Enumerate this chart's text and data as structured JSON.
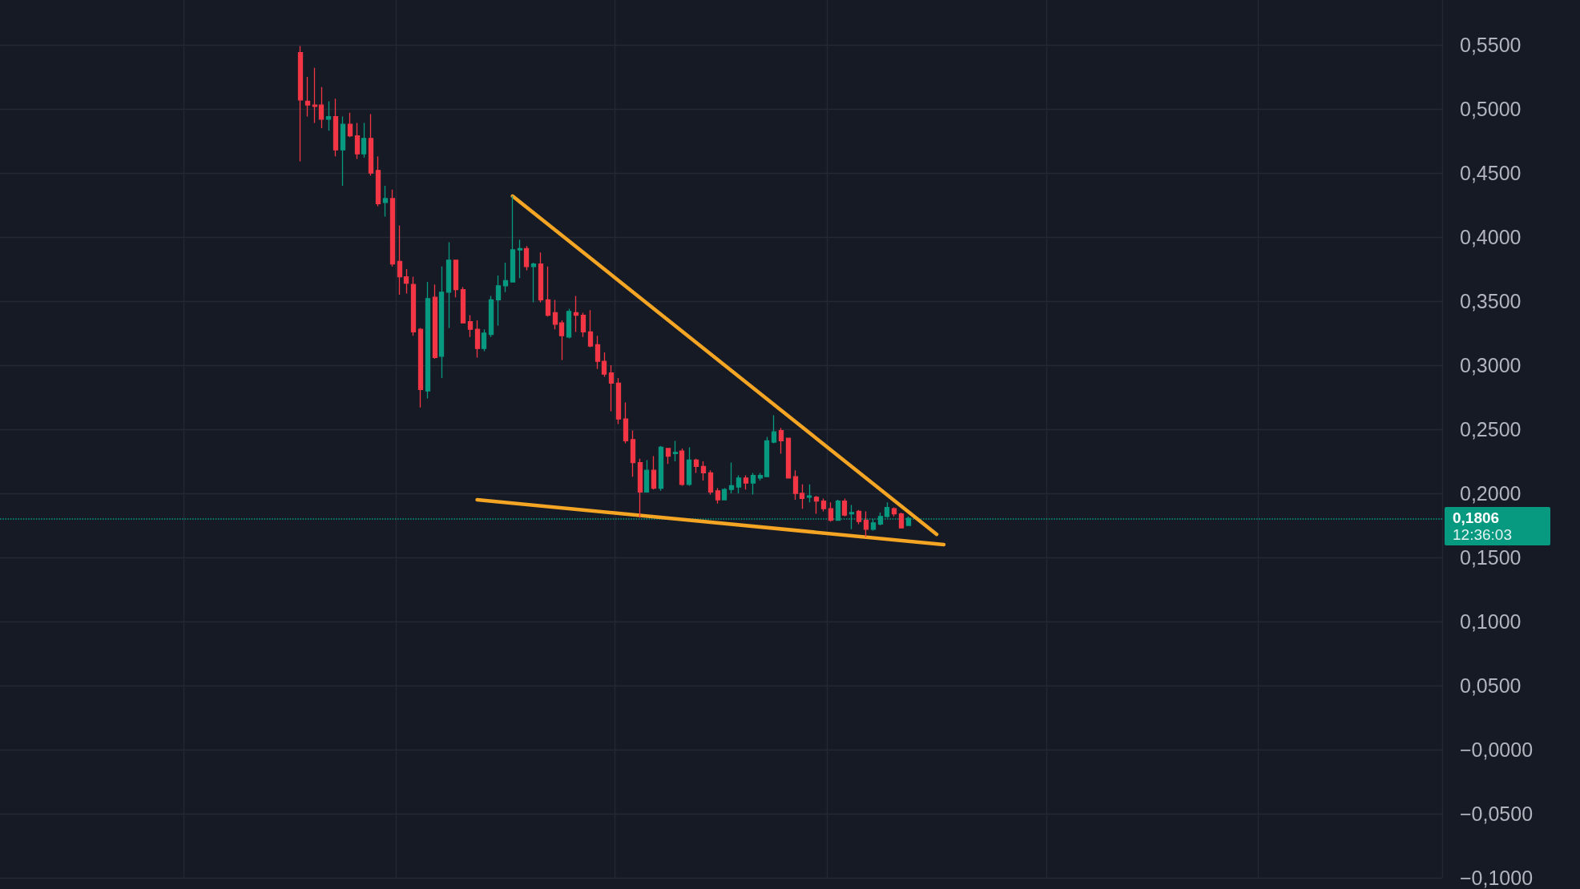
{
  "chart_data": {
    "type": "candlestick",
    "categories": [
      null,
      null,
      null,
      null,
      null,
      null,
      null,
      null,
      null,
      null,
      null,
      null,
      null,
      null,
      null,
      null,
      null,
      null,
      null,
      null,
      null,
      null,
      null,
      null,
      null,
      null,
      null,
      null,
      null,
      null,
      null,
      null,
      null,
      null,
      null,
      null,
      null,
      null,
      null,
      null,
      null,
      null,
      null,
      null,
      null,
      null,
      null,
      null,
      null,
      null,
      null,
      null,
      null,
      null,
      null,
      null,
      null,
      null,
      null,
      null,
      null,
      null,
      null,
      null,
      null,
      null,
      null,
      null,
      null,
      null,
      null,
      null,
      null,
      null,
      null,
      null,
      null,
      null,
      null,
      null,
      null,
      null,
      null,
      null,
      null,
      null,
      null,
      null,
      null,
      null,
      null,
      null,
      null,
      null,
      null,
      null,
      null,
      null,
      null,
      null,
      null,
      null,
      null,
      null,
      null,
      null,
      null,
      null,
      null,
      null,
      null,
      null,
      null,
      null,
      null,
      null,
      null,
      null,
      null,
      null,
      null,
      null,
      null,
      null,
      null,
      null,
      null,
      null,
      null,
      null,
      null,
      null,
      null,
      null,
      null,
      null,
      null,
      null,
      null,
      null,
      null,
      null,
      null,
      null,
      null,
      null,
      null,
      null,
      null,
      null,
      null,
      null,
      null,
      null,
      null,
      null,
      null,
      null,
      null,
      null,
      null,
      null,
      null,
      null,
      null,
      null,
      null,
      null,
      null,
      null,
      null,
      null,
      null,
      null,
      null,
      null,
      null,
      null,
      null,
      null,
      null,
      null,
      null,
      null,
      null,
      null,
      null,
      null,
      null,
      null,
      null,
      null,
      null,
      null,
      null,
      null,
      null,
      null,
      null,
      null,
      null,
      null,
      null,
      null
    ],
    "ohlc": [
      null,
      null,
      null,
      null,
      null,
      null,
      null,
      null,
      null,
      null,
      null,
      null,
      null,
      null,
      null,
      null,
      null,
      null,
      null,
      null,
      null,
      null,
      null,
      null,
      null,
      null,
      null,
      null,
      null,
      null,
      null,
      null,
      null,
      null,
      null,
      null,
      null,
      null,
      null,
      null,
      null,
      null,
      [
        0.544,
        0.549,
        0.459,
        0.507
      ],
      [
        0.506,
        0.525,
        0.494,
        0.503
      ],
      [
        0.503,
        0.532,
        0.489,
        0.502
      ],
      [
        0.503,
        0.517,
        0.485,
        0.492
      ],
      [
        0.492,
        0.506,
        0.483,
        0.494
      ],
      [
        0.494,
        0.508,
        0.463,
        0.468
      ],
      [
        0.468,
        0.494,
        0.44,
        0.488
      ],
      [
        0.488,
        0.497,
        0.478,
        0.479
      ],
      [
        0.479,
        0.489,
        0.461,
        0.465
      ],
      [
        0.465,
        0.489,
        0.462,
        0.477
      ],
      [
        0.477,
        0.496,
        0.448,
        0.45
      ],
      [
        0.452,
        0.463,
        0.424,
        0.426
      ],
      [
        0.427,
        0.44,
        0.416,
        0.43
      ],
      [
        0.43,
        0.437,
        0.377,
        0.379
      ],
      [
        0.381,
        0.409,
        0.355,
        0.369
      ],
      [
        0.369,
        0.375,
        0.356,
        0.364
      ],
      [
        0.363,
        0.369,
        0.323,
        0.326
      ],
      [
        0.328,
        0.329,
        0.267,
        0.281
      ],
      [
        0.28,
        0.365,
        0.274,
        0.352
      ],
      [
        0.353,
        0.363,
        0.305,
        0.306
      ],
      [
        0.307,
        0.377,
        0.29,
        0.357
      ],
      [
        0.357,
        0.396,
        0.329,
        0.382
      ],
      [
        0.382,
        0.382,
        0.353,
        0.359
      ],
      [
        0.359,
        0.361,
        0.333,
        0.333
      ],
      [
        0.334,
        0.339,
        0.322,
        0.328
      ],
      [
        0.328,
        0.335,
        0.306,
        0.313
      ],
      [
        0.313,
        0.328,
        0.311,
        0.325
      ],
      [
        0.324,
        0.354,
        0.322,
        0.351
      ],
      [
        0.351,
        0.37,
        0.331,
        0.362
      ],
      [
        0.362,
        0.38,
        0.357,
        0.366
      ],
      [
        0.365,
        0.432,
        0.365,
        0.39
      ],
      [
        0.39,
        0.398,
        0.368,
        0.391
      ],
      [
        0.391,
        0.393,
        0.374,
        0.377
      ],
      [
        0.377,
        0.38,
        0.349,
        0.379
      ],
      [
        0.379,
        0.388,
        0.349,
        0.351
      ],
      [
        0.351,
        0.377,
        0.338,
        0.339
      ],
      [
        0.341,
        0.351,
        0.328,
        0.332
      ],
      [
        0.333,
        0.335,
        0.304,
        0.323
      ],
      [
        0.322,
        0.344,
        0.321,
        0.342
      ],
      [
        0.341,
        0.354,
        0.326,
        0.339
      ],
      [
        0.339,
        0.341,
        0.322,
        0.326
      ],
      [
        0.326,
        0.343,
        0.314,
        0.315
      ],
      [
        0.316,
        0.323,
        0.297,
        0.303
      ],
      [
        0.303,
        0.31,
        0.291,
        0.293
      ],
      [
        0.294,
        0.3,
        0.264,
        0.286
      ],
      [
        0.286,
        0.29,
        0.254,
        0.258
      ],
      [
        0.258,
        0.271,
        0.239,
        0.241
      ],
      [
        0.242,
        0.249,
        0.213,
        0.224
      ],
      [
        0.224,
        0.227,
        0.181,
        0.201
      ],
      [
        0.201,
        0.226,
        0.201,
        0.218
      ],
      [
        0.218,
        0.229,
        0.203,
        0.204
      ],
      [
        0.204,
        0.237,
        0.202,
        0.236
      ],
      [
        0.235,
        0.235,
        0.223,
        0.229
      ],
      [
        0.231,
        0.241,
        0.225,
        0.232
      ],
      [
        0.233,
        0.235,
        0.206,
        0.207
      ],
      [
        0.207,
        0.236,
        0.206,
        0.226
      ],
      [
        0.226,
        0.227,
        0.216,
        0.221
      ],
      [
        0.221,
        0.225,
        0.21,
        0.216
      ],
      [
        0.216,
        0.218,
        0.199,
        0.201
      ],
      [
        0.202,
        0.204,
        0.192,
        0.195
      ],
      [
        0.195,
        0.204,
        0.195,
        0.203
      ],
      [
        0.203,
        0.224,
        0.2,
        0.206
      ],
      [
        0.205,
        0.214,
        0.2,
        0.212
      ],
      [
        0.212,
        0.214,
        0.203,
        0.208
      ],
      [
        0.208,
        0.216,
        0.199,
        0.214
      ],
      [
        0.212,
        0.216,
        0.21,
        0.214
      ],
      [
        0.213,
        0.244,
        0.213,
        0.241
      ],
      [
        0.24,
        0.261,
        0.239,
        0.248
      ],
      [
        0.249,
        0.251,
        0.231,
        0.241
      ],
      [
        0.243,
        0.243,
        0.212,
        0.212
      ],
      [
        0.213,
        0.218,
        0.195,
        0.2
      ],
      [
        0.2,
        0.207,
        0.188,
        0.196
      ],
      [
        0.197,
        0.207,
        0.193,
        0.198
      ],
      [
        0.197,
        0.198,
        0.184,
        0.194
      ],
      [
        0.194,
        0.196,
        0.186,
        0.188
      ],
      [
        0.188,
        0.193,
        0.178,
        0.179
      ],
      [
        0.179,
        0.195,
        0.179,
        0.194
      ],
      [
        0.194,
        0.196,
        0.182,
        0.183
      ],
      [
        0.184,
        0.191,
        0.172,
        0.185
      ],
      [
        0.186,
        0.187,
        0.176,
        0.178
      ],
      [
        0.179,
        0.186,
        0.166,
        0.172
      ],
      [
        0.172,
        0.18,
        0.171,
        0.177
      ],
      [
        0.176,
        0.185,
        0.175,
        0.182
      ],
      [
        0.182,
        0.193,
        0.181,
        0.189
      ],
      [
        0.188,
        0.189,
        0.182,
        0.184
      ],
      [
        0.184,
        0.185,
        0.173,
        0.173
      ],
      [
        0.175,
        0.182,
        0.175,
        0.1806
      ],
      null,
      null,
      null,
      null,
      null,
      null,
      null,
      null,
      null,
      null,
      null,
      null,
      null,
      null,
      null,
      null,
      null,
      null,
      null,
      null,
      null,
      null,
      null,
      null,
      null,
      null,
      null,
      null,
      null,
      null,
      null,
      null,
      null,
      null,
      null,
      null,
      null,
      null,
      null,
      null,
      null,
      null,
      null,
      null,
      null,
      null,
      null,
      null,
      null,
      null,
      null,
      null,
      null,
      null,
      null,
      null,
      null,
      null,
      null,
      null,
      null,
      null,
      null,
      null,
      null,
      null,
      null,
      null,
      null,
      null,
      null,
      null,
      null,
      null,
      null
    ],
    "colors": [
      null,
      null,
      null,
      null,
      null,
      null,
      null,
      null,
      null,
      null,
      null,
      null,
      null,
      null,
      null,
      null,
      null,
      null,
      null,
      null,
      null,
      null,
      null,
      null,
      null,
      null,
      null,
      null,
      null,
      null,
      null,
      null,
      null,
      null,
      null,
      null,
      null,
      null,
      null,
      null,
      null,
      null,
      "#f23645",
      "#f23645",
      "#f23645",
      "#f23645",
      "#089981",
      "#f23645",
      "#089981",
      "#f23645",
      "#f23645",
      "#089981",
      "#f23645",
      "#f23645",
      "#089981",
      "#f23645",
      "#f23645",
      "#f23645",
      "#f23645",
      "#f23645",
      "#089981",
      "#f23645",
      "#089981",
      "#089981",
      "#f23645",
      "#f23645",
      "#f23645",
      "#f23645",
      "#089981",
      "#089981",
      "#089981",
      "#089981",
      "#089981",
      "#089981",
      "#f23645",
      "#089981",
      "#f23645",
      "#f23645",
      "#f23645",
      "#f23645",
      "#089981",
      "#f23645",
      "#f23645",
      "#f23645",
      "#f23645",
      "#f23645",
      "#f23645",
      "#f23645",
      "#f23645",
      "#f23645",
      "#f23645",
      "#089981",
      "#f23645",
      "#089981",
      "#f23645",
      "#089981",
      "#f23645",
      "#089981",
      "#f23645",
      "#f23645",
      "#f23645",
      "#f23645",
      "#089981",
      "#089981",
      "#089981",
      "#f23645",
      "#089981",
      "#089981",
      "#089981",
      "#089981",
      "#f23645",
      "#f23645",
      "#f23645",
      "#f23645",
      "#089981",
      "#f23645",
      "#f23645",
      "#f23645",
      "#089981",
      "#f23645",
      "#089981",
      "#f23645",
      "#f23645",
      "#089981",
      "#089981",
      "#089981",
      "#f23645",
      "#f23645",
      "#089981",
      null,
      null,
      null,
      null,
      null,
      null,
      null,
      null,
      null,
      null,
      null,
      null,
      null,
      null,
      null,
      null,
      null,
      null,
      null,
      null,
      null,
      null,
      null,
      null,
      null,
      null,
      null,
      null,
      null,
      null,
      null,
      null,
      null,
      null,
      null,
      null,
      null,
      null,
      null,
      null,
      null,
      null,
      null,
      null,
      null,
      null,
      null,
      null,
      null,
      null,
      null,
      null,
      null,
      null,
      null,
      null,
      null,
      null,
      null,
      null,
      null,
      null,
      null,
      null,
      null,
      null,
      null,
      null,
      null,
      null,
      null,
      null,
      null,
      null,
      null
    ],
    "series": [
      {
        "type": "line",
        "color": "#f5a524",
        "values": [
          null,
          null,
          null,
          null,
          null,
          null,
          null,
          null,
          null,
          null,
          null,
          null,
          null,
          null,
          null,
          null,
          null,
          null,
          null,
          null,
          null,
          null,
          null,
          null,
          null,
          null,
          null,
          null,
          null,
          null,
          null,
          null,
          null,
          null,
          null,
          null,
          null,
          null,
          null,
          null,
          null,
          null,
          null,
          null,
          null,
          null,
          null,
          null,
          null,
          null,
          null,
          null,
          null,
          null,
          null,
          null,
          null,
          null,
          null,
          null,
          null,
          null,
          null,
          null,
          null,
          null,
          null,
          null,
          null,
          null,
          null,
          null,
          0.432,
          null,
          null,
          null,
          null,
          null,
          null,
          null,
          null,
          null,
          null,
          null,
          null,
          null,
          null,
          null,
          null,
          null,
          null,
          null,
          null,
          null,
          null,
          null,
          null,
          null,
          null,
          null,
          null,
          null,
          null,
          null,
          null,
          null,
          null,
          null,
          null,
          null,
          null,
          null,
          null,
          null,
          null,
          null,
          null,
          null,
          null,
          null,
          null,
          null,
          null,
          null,
          null,
          null,
          null,
          null,
          null,
          null,
          null,
          null,
          0.168,
          null,
          null,
          null,
          null,
          null,
          null,
          null,
          null,
          null,
          null,
          null,
          null,
          null,
          null,
          null,
          null,
          null,
          null,
          null,
          null,
          null,
          null,
          null,
          null,
          null,
          null,
          null,
          null,
          null,
          null,
          null,
          null,
          null,
          null,
          null,
          null,
          null,
          null,
          null,
          null,
          null,
          null,
          null,
          null,
          null,
          null,
          null,
          null,
          null,
          null,
          null,
          null,
          null,
          null,
          null,
          null,
          null,
          null,
          null,
          null,
          null,
          null,
          null,
          null,
          null,
          null,
          null,
          null,
          null,
          null,
          null
        ]
      },
      {
        "type": "line",
        "color": "#f5a524",
        "values": [
          null,
          null,
          null,
          null,
          null,
          null,
          null,
          null,
          null,
          null,
          null,
          null,
          null,
          null,
          null,
          null,
          null,
          null,
          null,
          null,
          null,
          null,
          null,
          null,
          null,
          null,
          null,
          null,
          null,
          null,
          null,
          null,
          null,
          null,
          null,
          null,
          null,
          null,
          null,
          null,
          null,
          null,
          null,
          null,
          null,
          null,
          null,
          null,
          null,
          null,
          null,
          null,
          null,
          null,
          null,
          null,
          null,
          null,
          null,
          null,
          null,
          null,
          null,
          null,
          null,
          null,
          null,
          0.195,
          null,
          null,
          null,
          null,
          null,
          null,
          null,
          null,
          null,
          null,
          null,
          null,
          null,
          null,
          null,
          null,
          null,
          null,
          null,
          null,
          null,
          null,
          null,
          null,
          null,
          null,
          null,
          null,
          null,
          null,
          null,
          null,
          null,
          null,
          null,
          null,
          null,
          null,
          null,
          null,
          null,
          null,
          null,
          null,
          null,
          null,
          null,
          null,
          null,
          null,
          null,
          null,
          null,
          null,
          null,
          null,
          null,
          null,
          null,
          null,
          null,
          null,
          null,
          null,
          null,
          0.16,
          null,
          null,
          null,
          null,
          null,
          null,
          null,
          null,
          null,
          null,
          null,
          null,
          null,
          null,
          null,
          null,
          null,
          null,
          null,
          null,
          null,
          null,
          null,
          null,
          null,
          null,
          null,
          null,
          null,
          null,
          null,
          null,
          null,
          null,
          null,
          null,
          null,
          null,
          null,
          null,
          null,
          null,
          null,
          null,
          null,
          null,
          null,
          null,
          null,
          null,
          null,
          null,
          null,
          null,
          null,
          null,
          null,
          null,
          null,
          null,
          null,
          null,
          null,
          null,
          null,
          null,
          null,
          null,
          null,
          null
        ]
      }
    ],
    "ylim": [
      -0.1,
      0.585
    ],
    "yticks": [
      {
        "value": -0.1,
        "label": "−0,1000"
      },
      {
        "value": -0.05,
        "label": "−0,0500"
      },
      {
        "value": 0,
        "label": "−0,0000"
      },
      {
        "value": 0.05,
        "label": "0,0500"
      },
      {
        "value": 0.1,
        "label": "0,1000"
      },
      {
        "value": 0.15,
        "label": "0,1500"
      },
      {
        "value": 0.2,
        "label": "0,2000"
      },
      {
        "value": 0.25,
        "label": "0,2500"
      },
      {
        "value": 0.3,
        "label": "0,3000"
      },
      {
        "value": 0.35,
        "label": "0,3500"
      },
      {
        "value": 0.4,
        "label": "0,4000"
      },
      {
        "value": 0.45,
        "label": "0,4500"
      },
      {
        "value": 0.5,
        "label": "0,5000"
      },
      {
        "value": 0.55,
        "label": "0,5500"
      }
    ],
    "ref_lines": [
      {
        "axis": "y",
        "value": 0.1806,
        "label": "0,1806",
        "color": "#089981",
        "line_style": "dotted"
      }
    ],
    "annotations": [
      "12:36:03"
    ],
    "grid": true,
    "tick_labels": "y"
  }
}
